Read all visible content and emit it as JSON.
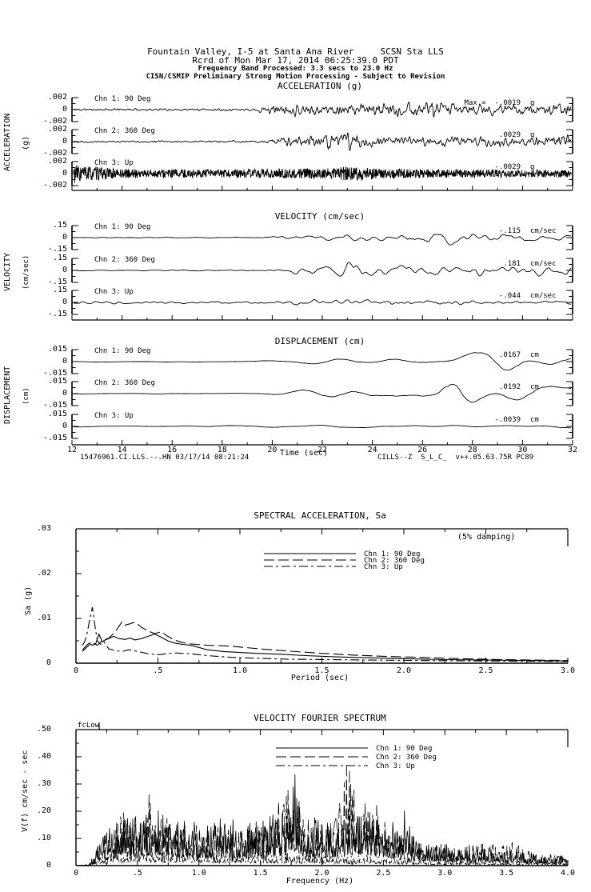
{
  "header": {
    "line1": "Fountain Valley, I-5 at Santa Ana River     SCSN Sta LLS",
    "line2": "Rcrd of Mon Mar 17, 2014 06:25:39.0 PDT",
    "line3": "Frequency Band Processed: 3.3 secs to 23.0 Hz",
    "line4": "CISN/CSMIP Preliminary Strong Motion Processing - Subject to Revision"
  },
  "footer": {
    "left": "15476961.CI.LLS.--.HN 03/17/14 08:21:24",
    "right": "CILLS--Z  S_L_C_  v++.05.63.75R PC89"
  },
  "time_axis": {
    "label": "Time (sec)",
    "ticks": [
      "12",
      "14",
      "16",
      "18",
      "20",
      "22",
      "24",
      "26",
      "28",
      "30",
      "32"
    ]
  },
  "colors": {
    "ink": "#000000",
    "background": "#ffffff"
  },
  "chart_data": [
    {
      "id": "acceleration",
      "type": "line",
      "title": "ACCELERATION (g)",
      "side_label": "ACCELERATION",
      "side_unit": "(g)",
      "y_tick_labels": [
        ".002",
        "0",
        "-.002"
      ],
      "y_scale_g": 0.002,
      "x_range_sec": [
        12,
        32
      ],
      "channels": [
        {
          "label": "Chn 1: 90 Deg",
          "max_prefix": "Max =",
          "max": "-.0019",
          "unit": "g",
          "peak_value": -0.0019,
          "seed": 11,
          "n": 1200,
          "smooth": 1,
          "env": [
            [
              0,
              0.12
            ],
            [
              0.36,
              0.12
            ],
            [
              0.4,
              0.5
            ],
            [
              0.47,
              0.62
            ],
            [
              0.55,
              0.55
            ],
            [
              0.62,
              0.6
            ],
            [
              0.7,
              0.95
            ],
            [
              0.78,
              0.65
            ],
            [
              0.88,
              0.6
            ],
            [
              1,
              0.5
            ]
          ]
        },
        {
          "label": "Chn 2: 360 Deg",
          "max_prefix": "",
          "max": ".0029",
          "unit": "g",
          "peak_value": 0.0029,
          "seed": 22,
          "n": 1200,
          "smooth": 1,
          "env": [
            [
              0,
              0.1
            ],
            [
              0.37,
              0.1
            ],
            [
              0.44,
              0.6
            ],
            [
              0.5,
              0.75
            ],
            [
              0.54,
              1.45
            ],
            [
              0.58,
              0.6
            ],
            [
              0.66,
              0.5
            ],
            [
              0.78,
              0.55
            ],
            [
              0.9,
              0.5
            ],
            [
              1,
              0.8
            ]
          ]
        },
        {
          "label": "Chn 3: Up",
          "max_prefix": "",
          "max": "-.0029",
          "unit": "g",
          "peak_value": -0.0029,
          "seed": 33,
          "n": 1400,
          "smooth": 0,
          "env": [
            [
              0,
              0.8
            ],
            [
              0.04,
              0.6
            ],
            [
              0.09,
              0.38
            ],
            [
              0.3,
              0.34
            ],
            [
              0.5,
              0.45
            ],
            [
              0.55,
              0.6
            ],
            [
              0.62,
              0.4
            ],
            [
              0.78,
              0.34
            ],
            [
              1,
              0.3
            ]
          ]
        }
      ]
    },
    {
      "id": "velocity",
      "type": "line",
      "title": "VELOCITY (cm/sec)",
      "side_label": "VELOCITY",
      "side_unit": "(cm/sec)",
      "y_tick_labels": [
        ".15",
        "0",
        "-.15"
      ],
      "y_scale_cm_sec": 0.15,
      "x_range_sec": [
        12,
        32
      ],
      "channels": [
        {
          "label": "Chn 1: 90 Deg",
          "max_prefix": "",
          "max": "-.115",
          "unit": "cm/sec",
          "peak_value": -0.115,
          "seed": 44,
          "n": 800,
          "smooth": 4,
          "env": [
            [
              0,
              0.05
            ],
            [
              0.36,
              0.06
            ],
            [
              0.45,
              0.35
            ],
            [
              0.55,
              0.45
            ],
            [
              0.63,
              0.55
            ],
            [
              0.7,
              0.77
            ],
            [
              0.78,
              0.55
            ],
            [
              0.88,
              0.5
            ],
            [
              1,
              0.35
            ]
          ]
        },
        {
          "label": "Chn 2: 360 Deg",
          "max_prefix": "",
          "max": ".181",
          "unit": "cm/sec",
          "peak_value": 0.181,
          "seed": 55,
          "n": 800,
          "smooth": 4,
          "env": [
            [
              0,
              0.04
            ],
            [
              0.38,
              0.05
            ],
            [
              0.48,
              0.5
            ],
            [
              0.53,
              0.7
            ],
            [
              0.56,
              1.2
            ],
            [
              0.6,
              0.55
            ],
            [
              0.7,
              0.5
            ],
            [
              0.8,
              0.55
            ],
            [
              0.9,
              0.5
            ],
            [
              1,
              0.6
            ]
          ]
        },
        {
          "label": "Chn 3: Up",
          "max_prefix": "",
          "max": "-.044",
          "unit": "cm/sec",
          "peak_value": -0.044,
          "seed": 66,
          "n": 900,
          "smooth": 3,
          "env": [
            [
              0,
              0.15
            ],
            [
              0.38,
              0.15
            ],
            [
              0.5,
              0.25
            ],
            [
              0.62,
              0.29
            ],
            [
              0.75,
              0.2
            ],
            [
              1,
              0.15
            ]
          ]
        }
      ]
    },
    {
      "id": "displacement",
      "type": "line",
      "title": "DISPLACEMENT (cm)",
      "side_label": "DISPLACEMENT",
      "side_unit": "(cm)",
      "y_tick_labels": [
        ".015",
        "0",
        "-.015"
      ],
      "y_scale_cm": 0.015,
      "x_range_sec": [
        12,
        32
      ],
      "channels": [
        {
          "label": "Chn 1: 90 Deg",
          "max_prefix": "",
          "max": ".0167",
          "unit": "cm",
          "peak_value": 0.0167,
          "seed": 77,
          "n": 420,
          "smooth": 8,
          "env": [
            [
              0,
              0.05
            ],
            [
              0.36,
              0.06
            ],
            [
              0.45,
              0.35
            ],
            [
              0.55,
              0.45
            ],
            [
              0.65,
              0.4
            ],
            [
              0.75,
              0.45
            ],
            [
              0.85,
              1.0
            ],
            [
              0.92,
              0.5
            ],
            [
              1,
              0.6
            ]
          ]
        },
        {
          "label": "Chn 2: 360 Deg",
          "max_prefix": "",
          "max": ".0192",
          "unit": "cm",
          "peak_value": 0.0192,
          "seed": 88,
          "n": 420,
          "smooth": 8,
          "env": [
            [
              0,
              0.04
            ],
            [
              0.38,
              0.05
            ],
            [
              0.48,
              0.4
            ],
            [
              0.56,
              0.6
            ],
            [
              0.64,
              0.45
            ],
            [
              0.72,
              0.5
            ],
            [
              0.77,
              1.28
            ],
            [
              0.82,
              0.5
            ],
            [
              0.9,
              0.55
            ],
            [
              1,
              0.65
            ]
          ]
        },
        {
          "label": "Chn 3: Up",
          "max_prefix": "",
          "max": "-.0039",
          "unit": "cm",
          "peak_value": -0.0039,
          "seed": 99,
          "n": 420,
          "smooth": 8,
          "env": [
            [
              0,
              0.1
            ],
            [
              0.3,
              0.12
            ],
            [
              0.45,
              0.2
            ],
            [
              0.52,
              0.26
            ],
            [
              0.6,
              0.18
            ],
            [
              0.75,
              0.15
            ],
            [
              1,
              0.12
            ]
          ]
        }
      ]
    },
    {
      "id": "spectral_acceleration",
      "type": "line",
      "title": "SPECTRAL ACCELERATION, Sa",
      "annotation": "(5% damping)",
      "xlabel": "Period (sec)",
      "ylabel": "Sa (g)",
      "xlim": [
        0,
        3
      ],
      "ylim": [
        0,
        0.03
      ],
      "x_tick_labels": [
        "0",
        ".5",
        "1.0",
        "1.5",
        "2.0",
        "2.5",
        "3.0"
      ],
      "y_tick_labels": [
        ".03",
        ".02",
        ".01",
        "0"
      ],
      "legend": {
        "entries": [
          {
            "label": "Chn 1: 90 Deg",
            "style": "solid"
          },
          {
            "label": "Chn 2: 360 Deg",
            "style": "dash"
          },
          {
            "label": "Chn 3: Up",
            "style": "dashdot"
          }
        ]
      },
      "series": [
        {
          "name": "Chn 1: 90 Deg",
          "style": "solid",
          "x": [
            0.04,
            0.06,
            0.08,
            0.1,
            0.12,
            0.14,
            0.16,
            0.18,
            0.2,
            0.23,
            0.26,
            0.3,
            0.33,
            0.36,
            0.4,
            0.44,
            0.48,
            0.52,
            0.56,
            0.6,
            0.65,
            0.7,
            0.8,
            0.9,
            1.0,
            1.1,
            1.25,
            1.4,
            1.6,
            1.8,
            2.0,
            2.25,
            2.5,
            2.75,
            3.0
          ],
          "y": [
            0.003,
            0.0038,
            0.0045,
            0.004,
            0.0043,
            0.0065,
            0.0048,
            0.0052,
            0.0055,
            0.006,
            0.0055,
            0.0053,
            0.0056,
            0.0052,
            0.0055,
            0.006,
            0.0065,
            0.0058,
            0.005,
            0.0045,
            0.0042,
            0.004,
            0.003,
            0.0026,
            0.0024,
            0.0022,
            0.002,
            0.0017,
            0.0014,
            0.0012,
            0.001,
            0.0008,
            0.0007,
            0.0006,
            0.0005
          ]
        },
        {
          "name": "Chn 2: 360 Deg",
          "style": "dash",
          "x": [
            0.04,
            0.06,
            0.08,
            0.1,
            0.13,
            0.16,
            0.2,
            0.24,
            0.28,
            0.3,
            0.33,
            0.36,
            0.4,
            0.44,
            0.48,
            0.52,
            0.56,
            0.6,
            0.65,
            0.7,
            0.8,
            0.9,
            1.0,
            1.15,
            1.3,
            1.5,
            1.7,
            1.9,
            2.1,
            2.35,
            2.6,
            2.8,
            3.0
          ],
          "y": [
            0.0026,
            0.0034,
            0.004,
            0.0046,
            0.004,
            0.005,
            0.0056,
            0.007,
            0.0092,
            0.0085,
            0.0088,
            0.0092,
            0.008,
            0.0072,
            0.0066,
            0.007,
            0.006,
            0.0052,
            0.0046,
            0.0043,
            0.004,
            0.0039,
            0.0036,
            0.0031,
            0.0027,
            0.0022,
            0.0018,
            0.0015,
            0.0013,
            0.001,
            0.0008,
            0.0007,
            0.0006
          ]
        },
        {
          "name": "Chn 3: Up",
          "style": "dashdot",
          "x": [
            0.04,
            0.055,
            0.07,
            0.085,
            0.1,
            0.115,
            0.13,
            0.15,
            0.17,
            0.2,
            0.24,
            0.28,
            0.32,
            0.38,
            0.44,
            0.5,
            0.6,
            0.7,
            0.8,
            0.95,
            1.1,
            1.3,
            1.55,
            1.8,
            2.1,
            2.5,
            3.0
          ],
          "y": [
            0.004,
            0.005,
            0.007,
            0.01,
            0.0125,
            0.0085,
            0.005,
            0.0042,
            0.0048,
            0.0032,
            0.0028,
            0.0026,
            0.003,
            0.0026,
            0.0021,
            0.0019,
            0.0023,
            0.0021,
            0.0017,
            0.0013,
            0.0011,
            0.0009,
            0.0008,
            0.0007,
            0.0006,
            0.0005,
            0.0004
          ]
        }
      ]
    },
    {
      "id": "velocity_fourier_spectrum",
      "type": "line",
      "title": "VELOCITY FOURIER SPECTRUM",
      "annotation": "fcLow",
      "xlabel": "Frequency (Hz)",
      "ylabel": "V(f)   cm/sec - sec",
      "xlim": [
        0,
        4
      ],
      "ylim": [
        0,
        0.5
      ],
      "x_tick_labels": [
        "0",
        ".5",
        "1.0",
        "1.5",
        "2.0",
        "2.5",
        "3.0",
        "3.5",
        "4.0"
      ],
      "y_tick_labels": [
        ".50",
        ".40",
        ".30",
        ".20",
        ".10",
        "0"
      ],
      "legend": {
        "entries": [
          {
            "label": "Chn 1: 90 Deg",
            "style": "solid"
          },
          {
            "label": "Chn 2: 360 Deg",
            "style": "dash"
          },
          {
            "label": "Chn 3: Up",
            "style": "dashdot"
          }
        ]
      },
      "series": [
        {
          "name": "Chn 1: 90 Deg",
          "style": "solid",
          "seed": 7,
          "n": 850,
          "env_hz": [
            [
              0,
              0
            ],
            [
              0.1,
              0.005
            ],
            [
              0.15,
              0.05
            ],
            [
              0.3,
              0.16
            ],
            [
              0.5,
              0.19
            ],
            [
              0.7,
              0.21
            ],
            [
              0.9,
              0.16
            ],
            [
              1.2,
              0.17
            ],
            [
              1.5,
              0.18
            ],
            [
              1.7,
              0.2
            ],
            [
              1.75,
              0.41
            ],
            [
              1.85,
              0.18
            ],
            [
              2.1,
              0.16
            ],
            [
              2.35,
              0.22
            ],
            [
              2.55,
              0.13
            ],
            [
              2.65,
              0.28
            ],
            [
              2.8,
              0.1
            ],
            [
              3.0,
              0.08
            ],
            [
              3.3,
              0.06
            ],
            [
              3.6,
              0.05
            ],
            [
              4.0,
              0.03
            ]
          ]
        },
        {
          "name": "Chn 2: 360 Deg",
          "style": "dash",
          "seed": 8,
          "n": 850,
          "env_hz": [
            [
              0,
              0
            ],
            [
              0.1,
              0.005
            ],
            [
              0.2,
              0.07
            ],
            [
              0.35,
              0.2
            ],
            [
              0.5,
              0.16
            ],
            [
              0.62,
              0.3
            ],
            [
              0.7,
              0.18
            ],
            [
              0.9,
              0.17
            ],
            [
              1.1,
              0.15
            ],
            [
              1.4,
              0.14
            ],
            [
              1.6,
              0.16
            ],
            [
              1.75,
              0.32
            ],
            [
              1.9,
              0.14
            ],
            [
              2.1,
              0.18
            ],
            [
              2.2,
              0.44
            ],
            [
              2.3,
              0.2
            ],
            [
              2.4,
              0.28
            ],
            [
              2.55,
              0.12
            ],
            [
              2.8,
              0.09
            ],
            [
              3.1,
              0.07
            ],
            [
              3.5,
              0.09
            ],
            [
              3.8,
              0.05
            ],
            [
              4.0,
              0.03
            ]
          ]
        },
        {
          "name": "Chn 3: Up",
          "style": "dashdot",
          "seed": 9,
          "n": 850,
          "env_hz": [
            [
              0,
              0
            ],
            [
              0.12,
              0.005
            ],
            [
              0.3,
              0.05
            ],
            [
              0.5,
              0.07
            ],
            [
              0.8,
              0.06
            ],
            [
              1.2,
              0.05
            ],
            [
              1.6,
              0.05
            ],
            [
              2.0,
              0.04
            ],
            [
              2.5,
              0.035
            ],
            [
              3.0,
              0.02
            ],
            [
              3.5,
              0.015
            ],
            [
              4.0,
              0.01
            ]
          ]
        }
      ]
    }
  ]
}
